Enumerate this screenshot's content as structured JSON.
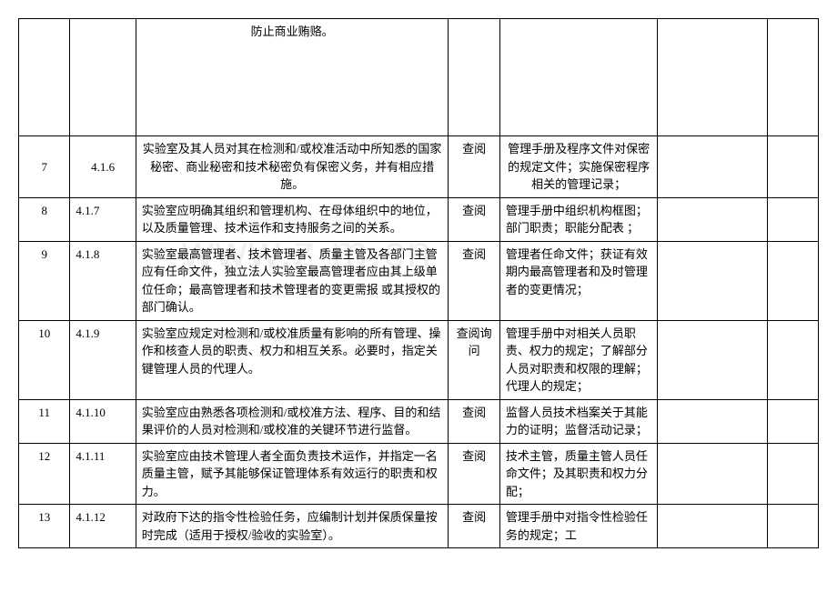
{
  "watermark": "www.z   m.cn",
  "rows": [
    {
      "idx": "",
      "ref": "",
      "req": "防止商业贿赂。",
      "method": "",
      "evidence": "",
      "e1": "",
      "e2": "",
      "tall": true,
      "req_center": true
    },
    {
      "idx": "7",
      "ref": "4.1.6",
      "req": "实验室及其人员对其在检测和/或校准活动中所知悉的国家秘密、商业秘密和技术秘密负有保密义务，并有相应措施。",
      "method": "查阅",
      "evidence": "管理手册及程序文件对保密的规定文件；实施保密程序相关的管理记录；",
      "e1": "",
      "e2": "",
      "idx_center": true,
      "ref_center": true,
      "req_center": true,
      "evd_center": true
    },
    {
      "idx": "8",
      "ref": "4.1.7",
      "req": "实验室应明确其组织和管理机构、在母体组织中的地位，以及质量管理、技术运作和支持服务之间的关系。",
      "method": "查阅",
      "evidence": "管理手册中组织机构框图；部门职责；职能分配表 ；",
      "e1": "",
      "e2": ""
    },
    {
      "idx": "9",
      "ref": "4.1.8",
      "req": "实验室最高管理者、技术管理者、质量主管及各部门主管应有任命文件，独立法人实验室最高管理者应由其上级单位任命；最高管理者和技术管理者的变更需报 或其授权的部门确认。",
      "method": "查阅",
      "evidence": "管理者任命文件；获证有效期内最高管理者和及时管理者的变更情况；",
      "e1": "",
      "e2": ""
    },
    {
      "idx": "10",
      "ref": "4.1.9",
      "req": "实验室应规定对检测和/或校准质量有影响的所有管理、操作和核查人员的职责、权力和相互关系。必要时，指定关键管理人员的代理人。",
      "method": "查阅询问",
      "evidence": "管理手册中对相关人员职责、权力的规定；了解部分人员对职责和权限的理解；代理人的规定；",
      "e1": "",
      "e2": ""
    },
    {
      "idx": "11",
      "ref": "4.1.10",
      "req": "实验室应由熟悉各项检测和/或校准方法、程序、目的和结果评价的人员对检测和/或校准的关键环节进行监督。",
      "method": "查阅",
      "evidence": "监督人员技术档案关于其能力的证明；监督活动记录；",
      "e1": "",
      "e2": ""
    },
    {
      "idx": "12",
      "ref": "4.1.11",
      "req": "实验室应由技术管理人者全面负责技术运作，并指定一名质量主管，赋予其能够保证管理体系有效运行的职责和权力。",
      "method": "查阅",
      "evidence": "技术主管，质量主管人员任命文件；及其职责和权力分配；",
      "e1": "",
      "e2": ""
    },
    {
      "idx": "13",
      "ref": "4.1.12",
      "req": "对政府下达的指令性检验任务，应编制计划并保质保量按时完成（适用于授权/验收的实验室）。",
      "method": "查阅",
      "evidence": "管理手册中对指令性检验任务的规定；工",
      "e1": "",
      "e2": ""
    }
  ]
}
